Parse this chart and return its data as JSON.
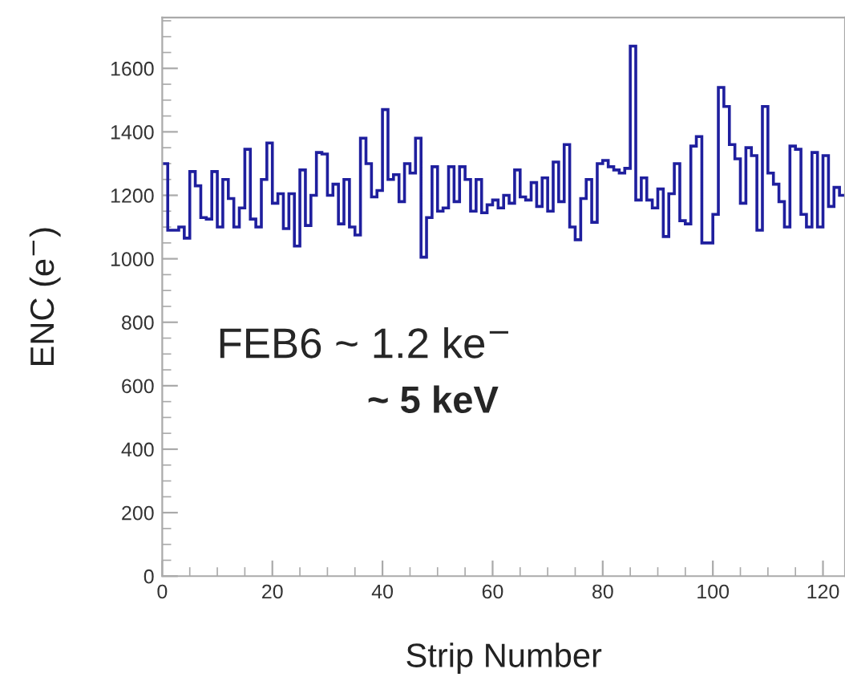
{
  "chart_data": {
    "type": "histogram",
    "xlabel": "Strip Number",
    "ylabel": "ENC (e$^{−}$)",
    "bins": [
      0,
      1,
      2,
      3,
      4,
      5,
      6,
      7,
      8,
      9,
      10,
      11,
      12,
      13,
      14,
      15,
      16,
      17,
      18,
      19,
      20,
      21,
      22,
      23,
      24,
      25,
      26,
      27,
      28,
      29,
      30,
      31,
      32,
      33,
      34,
      35,
      36,
      37,
      38,
      39,
      40,
      41,
      42,
      43,
      44,
      45,
      46,
      47,
      48,
      49,
      50,
      51,
      52,
      53,
      54,
      55,
      56,
      57,
      58,
      59,
      60,
      61,
      62,
      63,
      64,
      65,
      66,
      67,
      68,
      69,
      70,
      71,
      72,
      73,
      74,
      75,
      76,
      77,
      78,
      79,
      80,
      81,
      82,
      83,
      84,
      85,
      86,
      87,
      88,
      89,
      90,
      91,
      92,
      93,
      94,
      95,
      96,
      97,
      98,
      99,
      100,
      101,
      102,
      103,
      104,
      105,
      106,
      107,
      108,
      109,
      110,
      111,
      112,
      113,
      114,
      115,
      116,
      117,
      118,
      119,
      120,
      121,
      122,
      123,
      124
    ],
    "values": [
      1300,
      1090,
      1090,
      1100,
      1065,
      1275,
      1230,
      1130,
      1125,
      1275,
      1100,
      1250,
      1190,
      1100,
      1160,
      1345,
      1125,
      1100,
      1250,
      1365,
      1175,
      1205,
      1095,
      1205,
      1040,
      1280,
      1105,
      1200,
      1335,
      1330,
      1200,
      1235,
      1110,
      1250,
      1100,
      1075,
      1380,
      1300,
      1195,
      1215,
      1470,
      1250,
      1265,
      1180,
      1300,
      1270,
      1380,
      1005,
      1130,
      1290,
      1150,
      1160,
      1290,
      1180,
      1290,
      1250,
      1150,
      1250,
      1145,
      1170,
      1185,
      1160,
      1200,
      1175,
      1280,
      1195,
      1185,
      1240,
      1165,
      1255,
      1150,
      1305,
      1180,
      1360,
      1100,
      1060,
      1190,
      1250,
      1115,
      1300,
      1310,
      1290,
      1280,
      1270,
      1285,
      1670,
      1185,
      1255,
      1185,
      1160,
      1220,
      1070,
      1205,
      1300,
      1120,
      1110,
      1355,
      1385,
      1050,
      1050,
      1140,
      1540,
      1480,
      1360,
      1315,
      1175,
      1350,
      1325,
      1090,
      1480,
      1270,
      1235,
      1180,
      1100,
      1355,
      1345,
      1140,
      1100,
      1335,
      1100,
      1325,
      1165,
      1225,
      1200
    ],
    "color": "#1f1f9e",
    "xlim": [
      0,
      124
    ],
    "xticks": [
      0,
      20,
      40,
      60,
      80,
      100,
      120
    ],
    "ylim": [
      0,
      1760
    ],
    "yticks": [
      0,
      200,
      400,
      600,
      800,
      1000,
      1200,
      1400,
      1600
    ],
    "grid": false,
    "legend": false,
    "annotations": [
      "FEB6 ~ 1.2 ke$^{−}$",
      "~ 5 keV"
    ]
  }
}
